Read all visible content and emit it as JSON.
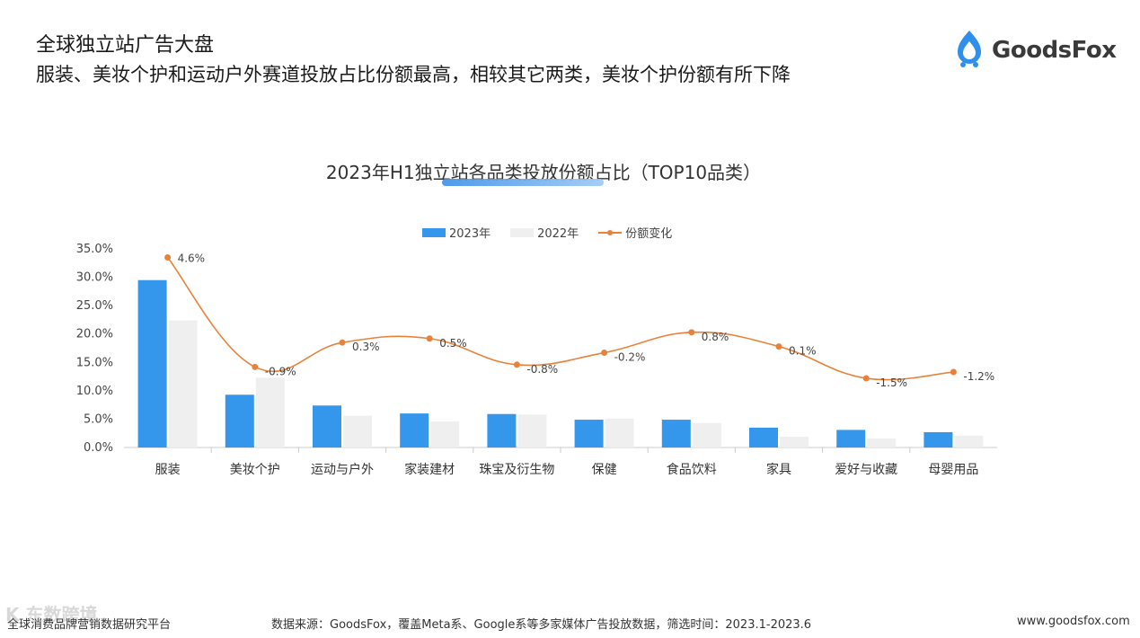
{
  "header": {
    "title": "全球独立站广告大盘",
    "subtitle": "服装、美妆个护和运动户外赛道投放占比份额最高，相较其它两类，美妆个护份额有所下降"
  },
  "logo": {
    "text": "GoodsFox",
    "icon": "goodsfox-logo-icon"
  },
  "colors": {
    "bar2023": "#3597ec",
    "bar2022": "#efefef",
    "line": "#e8823a",
    "axis": "#cccccc"
  },
  "chart_data": {
    "type": "bar",
    "title": "2023年H1独立站各品类投放份额占比（TOP10品类）",
    "categories": [
      "服装",
      "美妆个护",
      "运动与户外",
      "家装建材",
      "珠宝及衍生物",
      "保健",
      "食品饮料",
      "家具",
      "爱好与收藏",
      "母婴用品"
    ],
    "series": [
      {
        "name": "2023年",
        "values": [
          29.5,
          9.3,
          7.4,
          6.0,
          5.9,
          4.9,
          4.9,
          3.5,
          3.1,
          2.7
        ]
      },
      {
        "name": "2022年",
        "values": [
          22.4,
          12.3,
          5.6,
          4.6,
          5.8,
          5.1,
          4.3,
          1.9,
          1.6,
          2.1
        ]
      }
    ],
    "line": {
      "name": "份额变化",
      "values": [
        4.6,
        -0.9,
        0.3,
        0.5,
        -0.8,
        -0.2,
        0.8,
        0.1,
        -1.5,
        -1.2
      ],
      "labels": [
        "4.6%",
        "-0.9%",
        "0.3%",
        "0.5%",
        "-0.8%",
        "-0.2%",
        "0.8%",
        "0.1%",
        "-1.5%",
        "-1.2%"
      ],
      "plot_y": [
        33.5,
        14.2,
        18.5,
        19.2,
        14.6,
        16.7,
        20.3,
        17.8,
        12.2,
        13.3
      ]
    },
    "ylim": [
      0,
      35
    ],
    "yticks": [
      0,
      5,
      10,
      15,
      20,
      25,
      30,
      35
    ],
    "ytick_labels": [
      "0.0%",
      "5.0%",
      "10.0%",
      "15.0%",
      "20.0%",
      "25.0%",
      "30.0%",
      "35.0%"
    ],
    "legend": [
      "2023年",
      "2022年",
      "份额变化"
    ],
    "legend_position": "top-center",
    "grid": false
  },
  "footer": {
    "left": "全球消费品牌营销数据研究平台",
    "source": "数据来源：GoodsFox，覆盖Meta系、Google系等多家媒体广告投放数据，筛选时间：2023.1-2023.6",
    "url": "www.goodsfox.com"
  },
  "watermark": "K 东数跨境"
}
